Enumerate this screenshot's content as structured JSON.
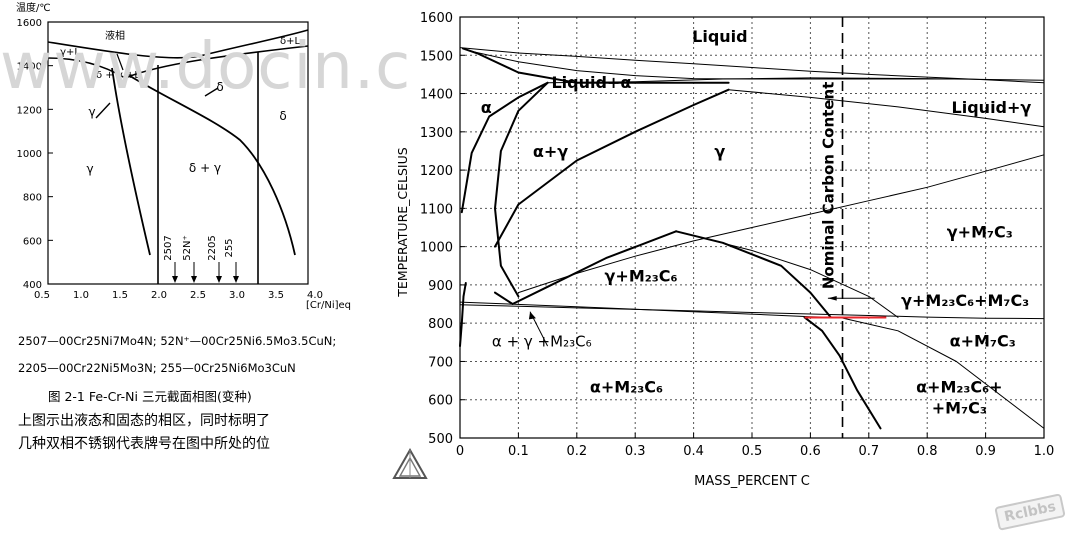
{
  "watermark": "www.docin.c",
  "stamp": "Rclbbs",
  "left_figure": {
    "y_unit": "温度/℃",
    "x_unit": "[Cr/Ni]eq",
    "y_ticks": [
      "1600",
      "1400",
      "1200",
      "1000",
      "800",
      "600",
      "400"
    ],
    "x_ticks": [
      "0.5",
      "1.0",
      "1.5",
      "2.0",
      "2.5",
      "3.0",
      "3.5",
      "4.0"
    ],
    "region_labels": [
      {
        "text": "液相"
      },
      {
        "text": "γ+L"
      },
      {
        "text": "δ+L"
      },
      {
        "text": "δ + γ +L"
      },
      {
        "text": "γ"
      },
      {
        "text": "δ"
      },
      {
        "text": "γ"
      },
      {
        "text": "δ + γ"
      },
      {
        "text": "δ"
      }
    ],
    "grade_marks": [
      "2507",
      "52N⁺",
      "2205",
      "255"
    ],
    "legend_line1": "2507—00Cr25Ni7Mo4N;  52N⁺—00Cr25Ni6.5Mo3.5CuN;",
    "legend_line2": "2205—00Cr22Ni5Mo3N;  255—0Cr25Ni6Mo3CuN",
    "caption": "图 2-1  Fe-Cr-Ni 三元截面相图(变种)",
    "text1": "上图示出液态和固态的相区，同时标明了",
    "text2": "几种双相不锈钢代表牌号在图中所处的位"
  },
  "chart_data": {
    "type": "line",
    "xlabel": "MASS_PERCENT C",
    "ylabel": "TEMPERATURE_CELSIUS",
    "xlim": [
      0,
      1.0
    ],
    "ylim": [
      500,
      1600
    ],
    "x_ticks": [
      "0",
      "0.1",
      "0.2",
      "0.3",
      "0.4",
      "0.5",
      "0.6",
      "0.7",
      "0.8",
      "0.9",
      "1.0"
    ],
    "y_ticks": [
      "500",
      "600",
      "700",
      "800",
      "900",
      "1000",
      "1100",
      "1200",
      "1300",
      "1400",
      "1500",
      "1600"
    ],
    "grid": "dotted",
    "nominal_carbon": {
      "x": 0.655,
      "label": "Nominal Carbon Content"
    },
    "highlight_segment": {
      "x": [
        0.59,
        0.73
      ],
      "y": 815,
      "color": "#e8262b"
    },
    "region_labels": [
      {
        "text": "Liquid",
        "x": 0.445,
        "y": 1550
      },
      {
        "text": "Liquid+α",
        "x": 0.225,
        "y": 1430
      },
      {
        "text": "Liquid+γ",
        "x": 0.91,
        "y": 1365
      },
      {
        "text": "α",
        "x": 0.045,
        "y": 1365
      },
      {
        "text": "α+γ",
        "x": 0.155,
        "y": 1250
      },
      {
        "text": "γ",
        "x": 0.445,
        "y": 1250
      },
      {
        "text": "γ+M₇C₃",
        "x": 0.89,
        "y": 1040
      },
      {
        "text": "γ+M₂₃C₆",
        "x": 0.31,
        "y": 925
      },
      {
        "text": "γ+M₂₃C₆+M₇C₃",
        "x": 0.865,
        "y": 860
      },
      {
        "text": "α+M₇C₃",
        "x": 0.895,
        "y": 755
      },
      {
        "text": "α + γ +M₂₃C₆",
        "x": 0.14,
        "y": 755
      },
      {
        "text": "α+M₂₃C₆",
        "x": 0.285,
        "y": 635
      },
      {
        "text": "α+M₂₃C₆+",
        "x": 0.855,
        "y": 635
      },
      {
        "text": "+M₇C₃",
        "x": 0.855,
        "y": 580
      }
    ],
    "series": [
      {
        "style": "thin",
        "x": [
          0,
          0.1,
          0.2,
          0.3,
          0.4,
          0.5,
          0.6,
          0.7,
          0.8,
          0.9,
          1.0
        ],
        "y": [
          1520,
          1506,
          1497,
          1487,
          1478,
          1468,
          1458,
          1450,
          1443,
          1436,
          1428
        ]
      },
      {
        "style": "thin",
        "x": [
          0.02,
          0.1,
          0.2,
          0.3,
          0.4,
          0.5,
          0.6,
          0.7,
          0.8,
          0.86
        ],
        "y": [
          1510,
          1483,
          1460,
          1447,
          1439,
          1438,
          1438,
          1438,
          1438,
          1438
        ]
      },
      {
        "style": "thin",
        "x": [
          0.15,
          0.3,
          0.45,
          0.6,
          0.8,
          1.0
        ],
        "y": [
          1428,
          1431,
          1438,
          1441,
          1439,
          1435
        ]
      },
      {
        "style": "thin",
        "x": [
          0.46,
          0.6,
          0.75,
          0.9,
          1.0
        ],
        "y": [
          1410,
          1390,
          1365,
          1335,
          1313
        ]
      },
      {
        "style": "thin",
        "x": [
          0.1,
          0.2,
          0.3,
          0.4,
          0.5,
          0.6,
          0.7,
          0.8,
          0.9,
          1.0
        ],
        "y": [
          880,
          930,
          975,
          1015,
          1050,
          1085,
          1120,
          1155,
          1197,
          1240
        ]
      },
      {
        "style": "thin",
        "x": [
          0.0,
          0.1,
          0.2,
          0.3,
          0.4,
          0.5,
          0.6,
          0.7,
          0.8,
          0.9,
          1.0
        ],
        "y": [
          848,
          844,
          840,
          836,
          832,
          828,
          824,
          820,
          816,
          813,
          812
        ]
      },
      {
        "style": "thin",
        "x": [
          0.0,
          0.2,
          0.4,
          0.6,
          0.65,
          0.75,
          0.85,
          1.0
        ],
        "y": [
          855,
          843,
          830,
          817,
          815,
          780,
          700,
          525
        ]
      },
      {
        "style": "thin",
        "x": [
          0.37,
          0.5,
          0.6,
          0.7,
          0.75
        ],
        "y": [
          1040,
          990,
          940,
          870,
          815
        ]
      },
      {
        "style": "thick",
        "x": [
          0.003,
          0.02,
          0.05,
          0.1,
          0.15
        ],
        "y": [
          1090,
          1245,
          1340,
          1390,
          1428
        ]
      },
      {
        "style": "thick",
        "x": [
          0.15,
          0.1,
          0.07,
          0.06,
          0.07,
          0.1
        ],
        "y": [
          1428,
          1355,
          1250,
          1100,
          950,
          870
        ]
      },
      {
        "style": "thick",
        "x": [
          0.005,
          0.03,
          0.1,
          0.2,
          0.3,
          0.4,
          0.46
        ],
        "y": [
          1518,
          1505,
          1455,
          1428,
          1428,
          1428,
          1428
        ]
      },
      {
        "style": "thick",
        "x": [
          0.06,
          0.1,
          0.2,
          0.3,
          0.4,
          0.46
        ],
        "y": [
          1000,
          1110,
          1225,
          1300,
          1370,
          1410
        ]
      },
      {
        "style": "thick",
        "x": [
          0.06,
          0.09,
          0.15,
          0.25,
          0.37
        ],
        "y": [
          880,
          850,
          895,
          970,
          1040
        ]
      },
      {
        "style": "thick",
        "x": [
          0.37,
          0.45,
          0.55,
          0.6,
          0.635
        ],
        "y": [
          1040,
          1010,
          950,
          880,
          815
        ]
      },
      {
        "style": "thick",
        "x": [
          0.59,
          0.62,
          0.65,
          0.68,
          0.72
        ],
        "y": [
          815,
          780,
          715,
          625,
          525
        ]
      },
      {
        "style": "thick",
        "x": [
          0.0,
          0.003,
          0.006,
          0.01
        ],
        "y": [
          740,
          800,
          870,
          905
        ]
      }
    ]
  }
}
